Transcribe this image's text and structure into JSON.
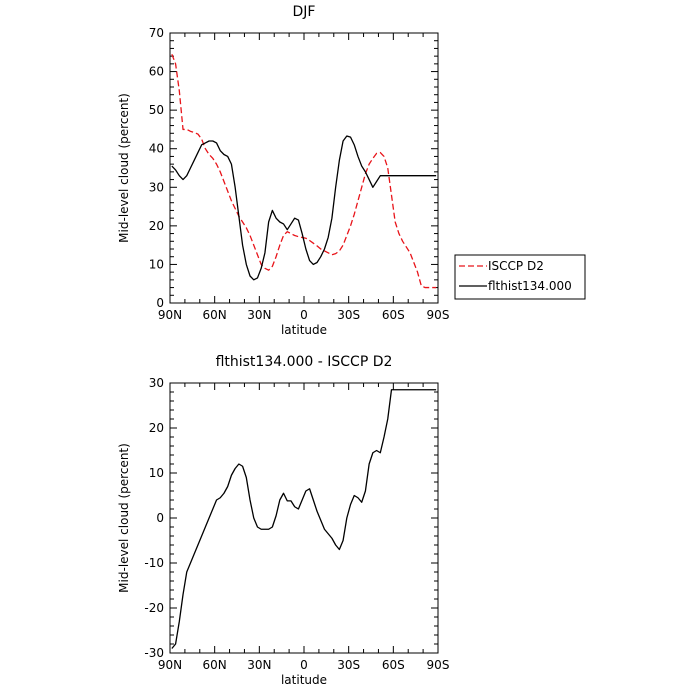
{
  "chart_data": [
    {
      "type": "line",
      "title": "DJF",
      "xlabel": "latitude",
      "ylabel": "Mid-level cloud (percent)",
      "ylim": [
        0,
        70
      ],
      "yticks": [
        0,
        10,
        20,
        30,
        40,
        50,
        60,
        70
      ],
      "xlim": [
        90,
        -90
      ],
      "xticks": [
        90,
        60,
        30,
        0,
        -30,
        -60,
        -90
      ],
      "xtick_labels": [
        "90N",
        "60N",
        "30N",
        "0",
        "30S",
        "60S",
        "90S"
      ],
      "legend_position": "right",
      "grid": false,
      "series": [
        {
          "name": "ISCCP D2",
          "color": "#e8141a",
          "dash": "dashed",
          "x": [
            88.75,
            86.25,
            83.75,
            81.25,
            78.75,
            76.25,
            73.75,
            71.25,
            68.75,
            66.25,
            63.75,
            61.25,
            58.75,
            56.25,
            53.75,
            51.25,
            48.75,
            46.25,
            43.75,
            41.25,
            38.75,
            36.25,
            33.75,
            31.25,
            28.75,
            26.25,
            23.75,
            21.25,
            18.75,
            16.25,
            13.75,
            11.25,
            8.75,
            6.25,
            3.75,
            1.25,
            -1.25,
            -3.75,
            -6.25,
            -8.75,
            -11.25,
            -13.75,
            -16.25,
            -18.75,
            -21.25,
            -23.75,
            -26.25,
            -28.75,
            -31.25,
            -33.75,
            -36.25,
            -38.75,
            -41.25,
            -43.75,
            -46.25,
            -48.75,
            -51.25,
            -53.75,
            -56.25,
            -58.75,
            -61.25,
            -63.75,
            -66.25,
            -68.75,
            -71.25,
            -73.75,
            -76.25,
            -78.75,
            -81.25,
            -83.75,
            -86.25,
            -88.75
          ],
          "y": [
            64.5,
            62,
            55,
            45,
            45,
            44.5,
            44.2,
            43.8,
            42.5,
            40,
            38.5,
            37.5,
            36,
            34,
            31.5,
            29,
            26.5,
            24.5,
            22.5,
            21,
            19.5,
            17.5,
            15,
            12.5,
            10,
            9,
            8.5,
            9.5,
            12,
            15,
            17.5,
            18.5,
            18,
            17.5,
            17.2,
            17,
            16.8,
            16.2,
            15.5,
            14.8,
            14,
            13.5,
            13,
            12.5,
            12.8,
            13.5,
            15,
            17.5,
            20,
            23,
            26.5,
            30,
            33.5,
            36,
            37.5,
            38.8,
            39,
            38,
            35,
            28,
            21,
            18,
            16,
            14.5,
            13,
            10.5,
            8,
            4.5,
            4,
            4,
            4,
            4
          ]
        },
        {
          "name": "flthist134.000",
          "color": "#000000",
          "dash": "solid",
          "x": [
            88.75,
            86.25,
            83.75,
            81.25,
            78.75,
            76.25,
            73.75,
            71.25,
            68.75,
            66.25,
            63.75,
            61.25,
            58.75,
            56.25,
            53.75,
            51.25,
            48.75,
            46.25,
            43.75,
            41.25,
            38.75,
            36.25,
            33.75,
            31.25,
            28.75,
            26.25,
            23.75,
            21.25,
            18.75,
            16.25,
            13.75,
            11.25,
            8.75,
            6.25,
            3.75,
            1.25,
            -1.25,
            -3.75,
            -6.25,
            -8.75,
            -11.25,
            -13.75,
            -16.25,
            -18.75,
            -21.25,
            -23.75,
            -26.25,
            -28.75,
            -31.25,
            -33.75,
            -36.25,
            -38.75,
            -41.25,
            -43.75,
            -46.25,
            -48.75,
            -51.25,
            -53.75,
            -56.25,
            -58.75,
            -61.25,
            -63.75,
            -66.25,
            -68.75,
            -71.25,
            -73.75,
            -76.25,
            -78.75,
            -81.25,
            -83.75,
            -86.25,
            -88.75
          ],
          "y": [
            35.5,
            34.5,
            33,
            32,
            33,
            35,
            37,
            39,
            41,
            41.5,
            42,
            42,
            41.5,
            39.5,
            38.5,
            38,
            36,
            30,
            22.5,
            15,
            10,
            7,
            6,
            6.5,
            9,
            13,
            21,
            24,
            22,
            21,
            20.5,
            19,
            20.5,
            22,
            21.5,
            18,
            14,
            11,
            10,
            10.5,
            12,
            14,
            17,
            22,
            30,
            37,
            42,
            43.3,
            43,
            41,
            38,
            35.5,
            34,
            32,
            30,
            31.5,
            33,
            33,
            33,
            33,
            33,
            33,
            33,
            33,
            33,
            33,
            33,
            33,
            33,
            33,
            33,
            33
          ]
        }
      ]
    },
    {
      "type": "line",
      "title": "flthist134.000 - ISCCP D2",
      "xlabel": "latitude",
      "ylabel": "Mid-level cloud (percent)",
      "ylim": [
        -30,
        30
      ],
      "yticks": [
        -30,
        -20,
        -10,
        0,
        10,
        20,
        30
      ],
      "xlim": [
        90,
        -90
      ],
      "xticks": [
        90,
        60,
        30,
        0,
        -30,
        -60,
        -90
      ],
      "xtick_labels": [
        "90N",
        "60N",
        "30N",
        "0",
        "30S",
        "60S",
        "90S"
      ],
      "grid": false,
      "series": [
        {
          "color": "#000000",
          "x": [
            88.75,
            86.25,
            83.75,
            81.25,
            78.75,
            76.25,
            73.75,
            71.25,
            68.75,
            66.25,
            63.75,
            61.25,
            58.75,
            56.25,
            53.75,
            51.25,
            48.75,
            46.25,
            43.75,
            41.25,
            38.75,
            36.25,
            33.75,
            31.25,
            28.75,
            26.25,
            23.75,
            21.25,
            18.75,
            16.25,
            13.75,
            11.25,
            8.75,
            6.25,
            3.75,
            1.25,
            -1.25,
            -3.75,
            -6.25,
            -8.75,
            -11.25,
            -13.75,
            -16.25,
            -18.75,
            -21.25,
            -23.75,
            -26.25,
            -28.75,
            -31.25,
            -33.75,
            -36.25,
            -38.75,
            -41.25,
            -43.75,
            -46.25,
            -48.75,
            -51.25,
            -53.75,
            -56.25,
            -58.75,
            -61.25,
            -63.75,
            -66.25,
            -68.75,
            -71.25,
            -73.75,
            -76.25,
            -78.75,
            -81.25,
            -83.75,
            -86.25,
            -88.75
          ],
          "y": [
            -29,
            -28,
            -23,
            -17,
            -12,
            -10,
            -8,
            -6,
            -4,
            -2,
            0,
            2,
            4,
            4.5,
            5.5,
            7,
            9.5,
            11,
            12,
            11.5,
            9,
            4,
            0,
            -2,
            -2.5,
            -2.5,
            -2.5,
            -2,
            0.5,
            4,
            5.5,
            3.8,
            3.8,
            2.5,
            2,
            4,
            6,
            6.5,
            4,
            1.5,
            -0.5,
            -2.5,
            -3.5,
            -4.5,
            -6,
            -7,
            -5,
            0,
            3,
            5,
            4.5,
            3.5,
            6,
            12,
            14.5,
            15,
            14.5,
            18,
            22,
            28.5,
            28.5,
            28.5,
            28.5,
            28.5,
            28.5,
            28.5,
            28.5,
            28.5,
            28.5,
            28.5,
            28.5,
            28.5
          ]
        }
      ]
    }
  ]
}
